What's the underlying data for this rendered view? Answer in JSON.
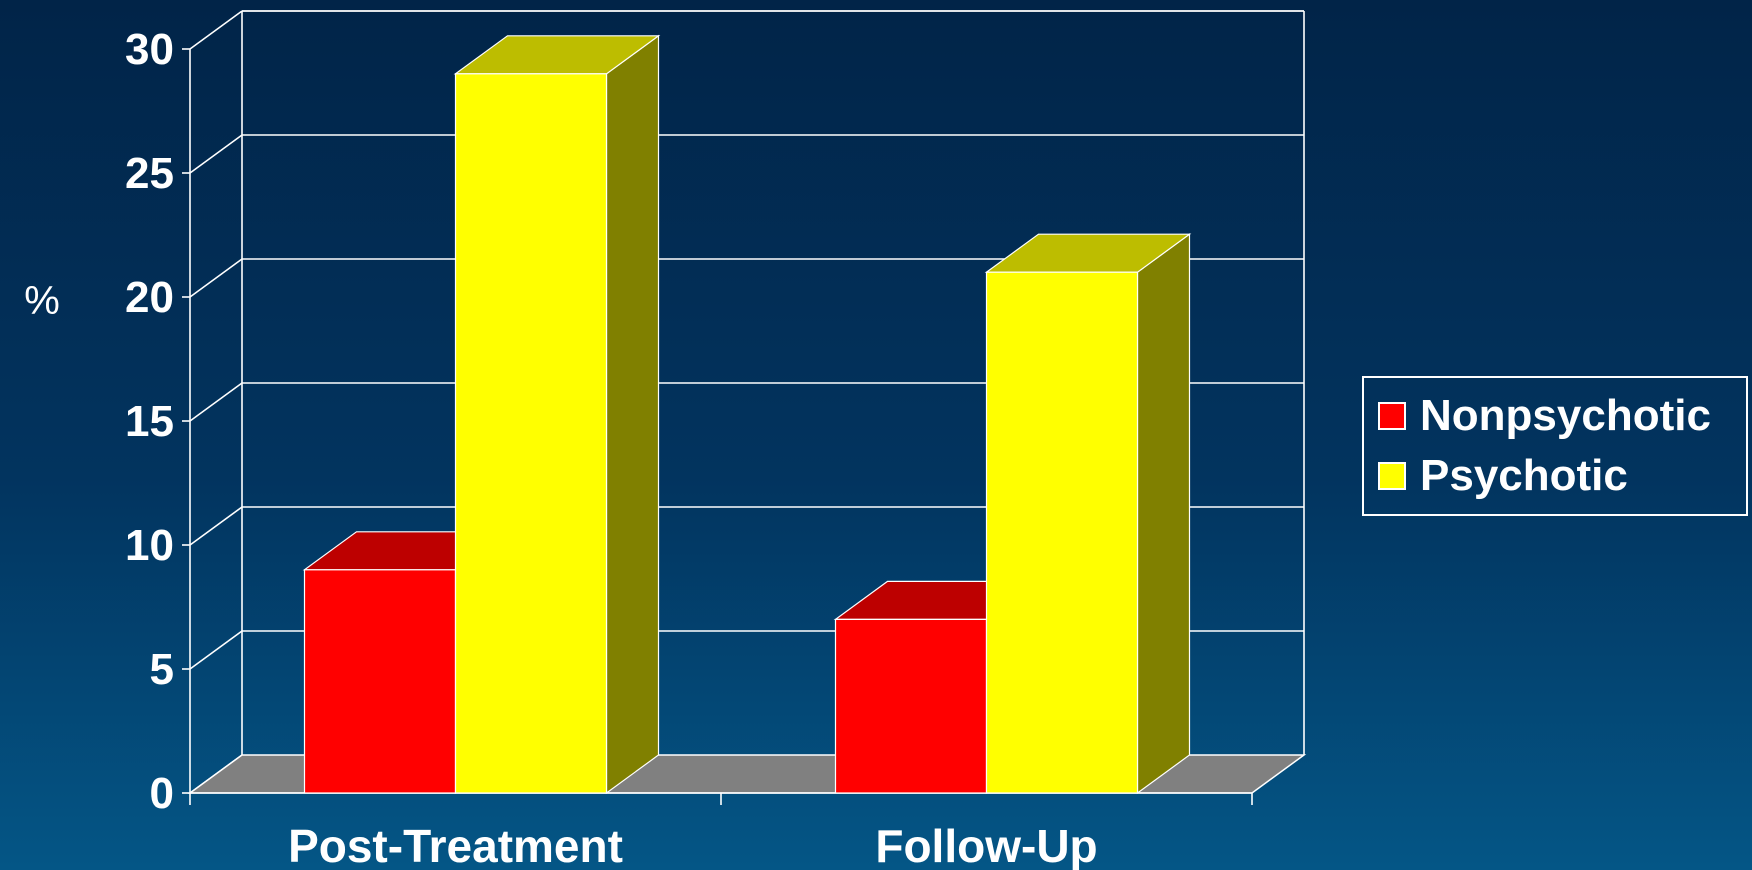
{
  "chart_data": {
    "type": "bar",
    "style": "3d-clustered-column",
    "categories": [
      "Post-Treatment",
      "Follow-Up"
    ],
    "series": [
      {
        "name": "Nonpsychotic",
        "values": [
          9,
          7
        ],
        "color": "#ff0000"
      },
      {
        "name": "Psychotic",
        "values": [
          29,
          21
        ],
        "color": "#ffff00"
      }
    ],
    "ylabel": "%",
    "ylim": [
      0,
      30
    ],
    "yticks": [
      "0",
      "5",
      "10",
      "15",
      "20",
      "25",
      "30"
    ],
    "grid": true,
    "legend_position": "right"
  },
  "colors": {
    "background_top": "#012448",
    "background_bottom": "#045686",
    "floor": "#808080",
    "gridline": "#ffffff"
  }
}
